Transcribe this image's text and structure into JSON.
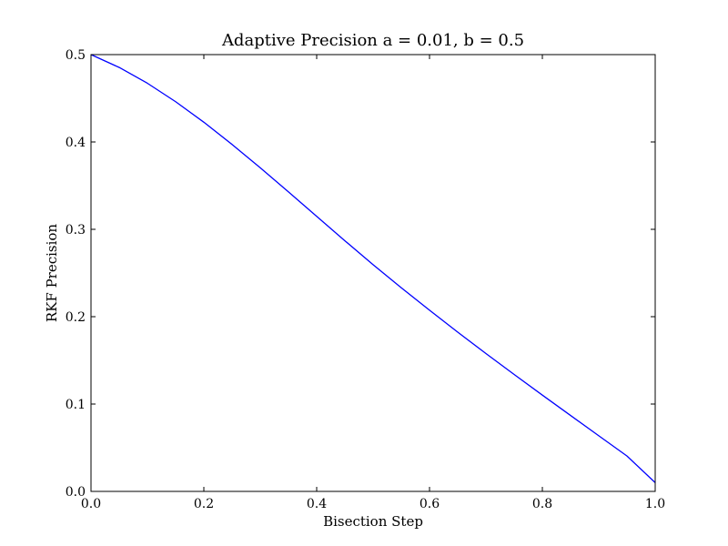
{
  "chart_data": {
    "type": "line",
    "title": "Adaptive Precision a = 0.01, b = 0.5",
    "xlabel": "Bisection Step",
    "ylabel": "RKF Precision",
    "xlim": [
      0.0,
      1.0
    ],
    "ylim": [
      0.0,
      0.5
    ],
    "xticks": [
      "0.0",
      "0.2",
      "0.4",
      "0.6",
      "0.8",
      "1.0"
    ],
    "yticks": [
      "0.0",
      "0.1",
      "0.2",
      "0.3",
      "0.4",
      "0.5"
    ],
    "grid": false,
    "series": [
      {
        "color": "#0000ff",
        "x": [
          0.0,
          0.05,
          0.1,
          0.15,
          0.2,
          0.25,
          0.3,
          0.35,
          0.4,
          0.45,
          0.5,
          0.55,
          0.6,
          0.65,
          0.7,
          0.75,
          0.8,
          0.85,
          0.9,
          0.95,
          1.0
        ],
        "y": [
          0.5,
          0.4853,
          0.4672,
          0.4461,
          0.4226,
          0.3972,
          0.3704,
          0.3428,
          0.3148,
          0.2869,
          0.2595,
          0.2331,
          0.2074,
          0.1823,
          0.1578,
          0.1339,
          0.1102,
          0.0869,
          0.0637,
          0.0405,
          0.01
        ]
      }
    ]
  }
}
